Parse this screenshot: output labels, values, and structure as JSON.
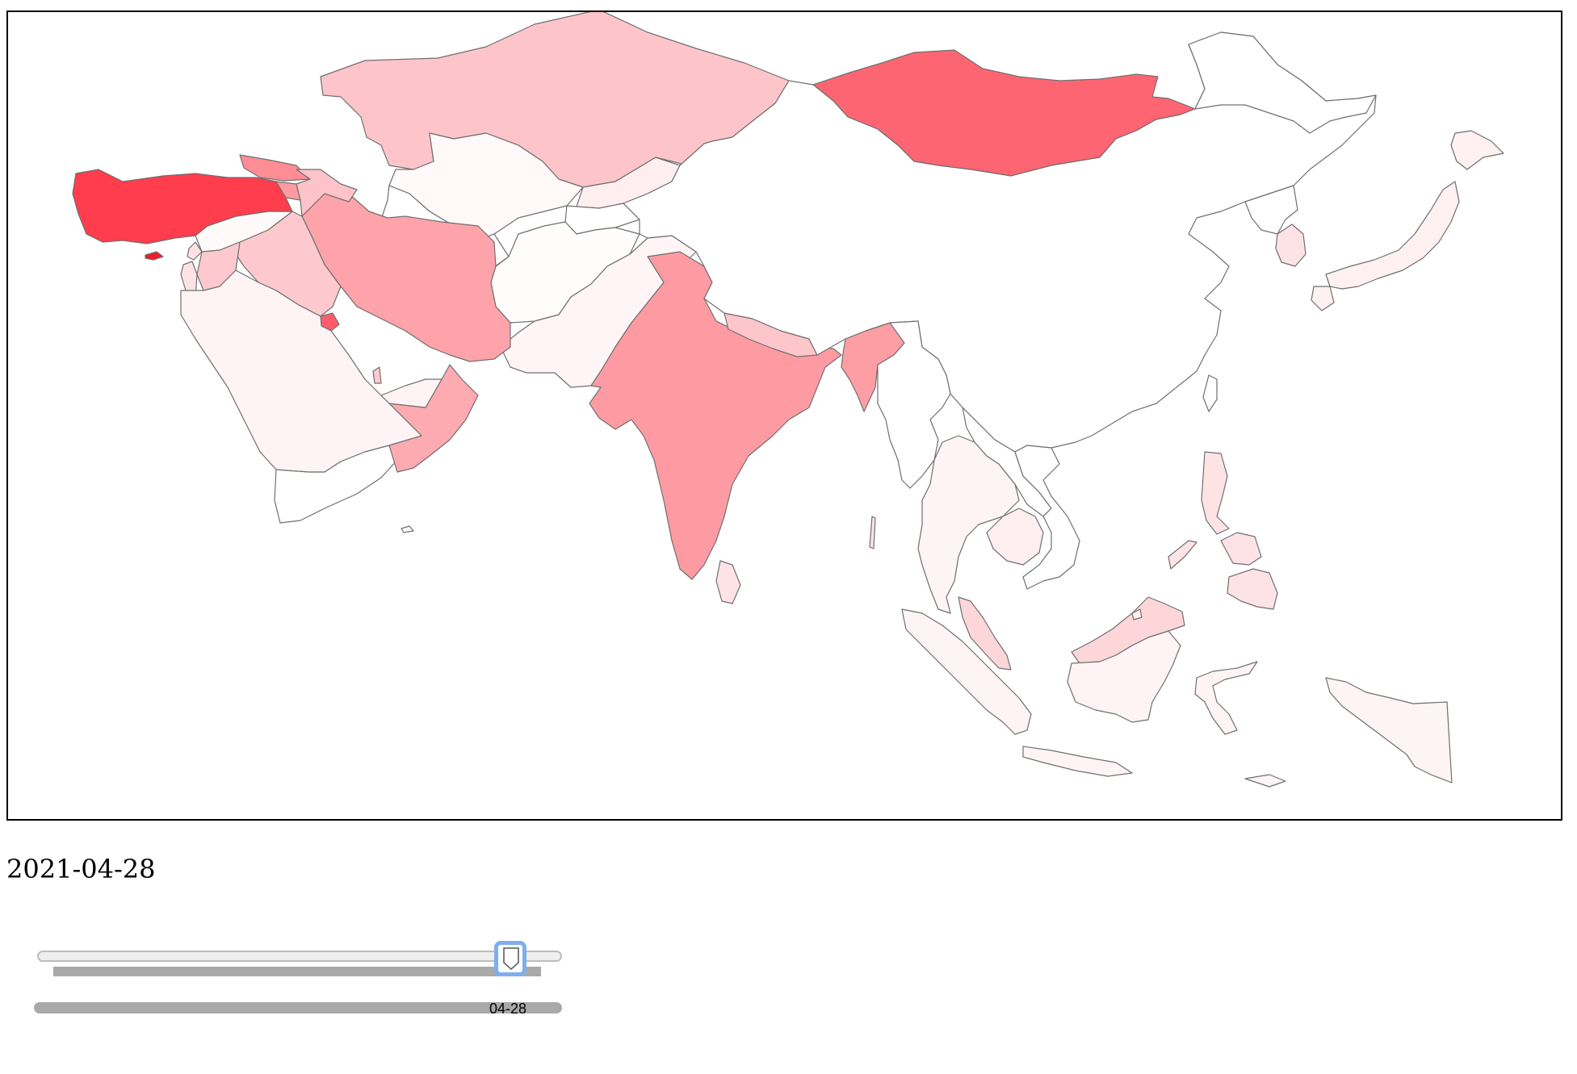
{
  "current_date": "2021-04-28",
  "slider": {
    "value_label": "04-28"
  },
  "map": {
    "region": "Asia",
    "colors": {
      "scale_low": "#fff7f7",
      "scale_high": "#ff3a4a",
      "border": "#6f6f6f"
    },
    "shaded_countries": [
      {
        "name": "Turkey",
        "intensity": 0.95
      },
      {
        "name": "Cyprus",
        "intensity": 1.0
      },
      {
        "name": "Mongolia",
        "intensity": 0.78
      },
      {
        "name": "India",
        "intensity": 0.5
      },
      {
        "name": "Iran",
        "intensity": 0.45
      },
      {
        "name": "Georgia",
        "intensity": 0.55
      },
      {
        "name": "Armenia",
        "intensity": 0.5
      },
      {
        "name": "Kuwait",
        "intensity": 0.7
      },
      {
        "name": "Bahrain",
        "intensity": 0.65
      },
      {
        "name": "Oman",
        "intensity": 0.4
      },
      {
        "name": "Iraq",
        "intensity": 0.3
      },
      {
        "name": "Jordan",
        "intensity": 0.3
      },
      {
        "name": "Lebanon",
        "intensity": 0.35
      },
      {
        "name": "Kazakhstan",
        "intensity": 0.28
      },
      {
        "name": "Azerbaijan",
        "intensity": 0.28
      },
      {
        "name": "Nepal",
        "intensity": 0.3
      },
      {
        "name": "Bangladesh",
        "intensity": 0.45
      },
      {
        "name": "Malaysia",
        "intensity": 0.22
      },
      {
        "name": "Philippines",
        "intensity": 0.2
      },
      {
        "name": "Sri Lanka",
        "intensity": 0.12
      },
      {
        "name": "Kyrgyzstan",
        "intensity": 0.1
      },
      {
        "name": "Saudi Arabia",
        "intensity": 0.08
      },
      {
        "name": "Pakistan",
        "intensity": 0.06
      },
      {
        "name": "Japan",
        "intensity": 0.08
      },
      {
        "name": "South Korea",
        "intensity": 0.12
      },
      {
        "name": "Thailand",
        "intensity": 0.06
      },
      {
        "name": "Cambodia",
        "intensity": 0.08
      },
      {
        "name": "Indonesia",
        "intensity": 0.06
      },
      {
        "name": "Uzbekistan",
        "intensity": 0.03
      },
      {
        "name": "Afghanistan",
        "intensity": 0.02
      }
    ]
  }
}
